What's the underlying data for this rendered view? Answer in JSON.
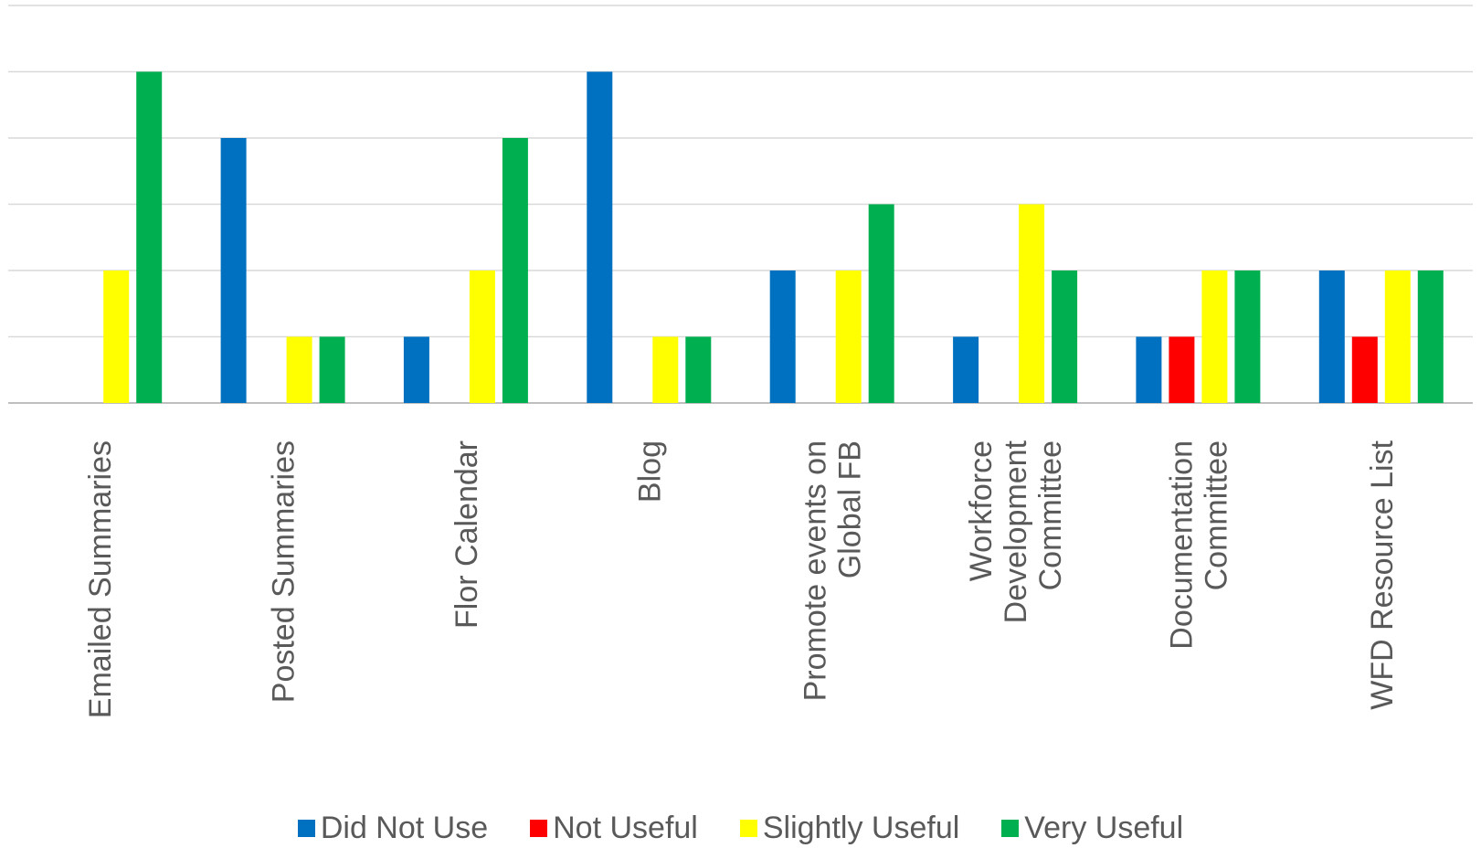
{
  "chart_data": {
    "type": "bar",
    "categories": [
      [
        "Emailed Summaries"
      ],
      [
        "Posted Summaries"
      ],
      [
        "Flor Calendar"
      ],
      [
        "Blog"
      ],
      [
        "Promote events on",
        "Global FB"
      ],
      [
        "Workforce",
        "Development",
        "Committee"
      ],
      [
        "Documentation",
        "Committee"
      ],
      [
        "WFD Resource List"
      ]
    ],
    "series": [
      {
        "name": "Did Not Use",
        "color": "#0070C0",
        "values": [
          0,
          4,
          1,
          5,
          2,
          1,
          1,
          2
        ]
      },
      {
        "name": "Not Useful",
        "color": "#FF0000",
        "values": [
          0,
          0,
          0,
          0,
          0,
          0,
          1,
          1
        ]
      },
      {
        "name": "Slightly Useful",
        "color": "#FFFF00",
        "values": [
          2,
          1,
          2,
          1,
          2,
          3,
          2,
          2
        ]
      },
      {
        "name": "Very Useful",
        "color": "#00B050",
        "values": [
          5,
          1,
          4,
          1,
          3,
          2,
          2,
          2
        ]
      }
    ],
    "ylim": [
      0,
      6
    ],
    "grid": true,
    "legend": "bottom",
    "title": "",
    "xlabel": "",
    "ylabel": ""
  }
}
